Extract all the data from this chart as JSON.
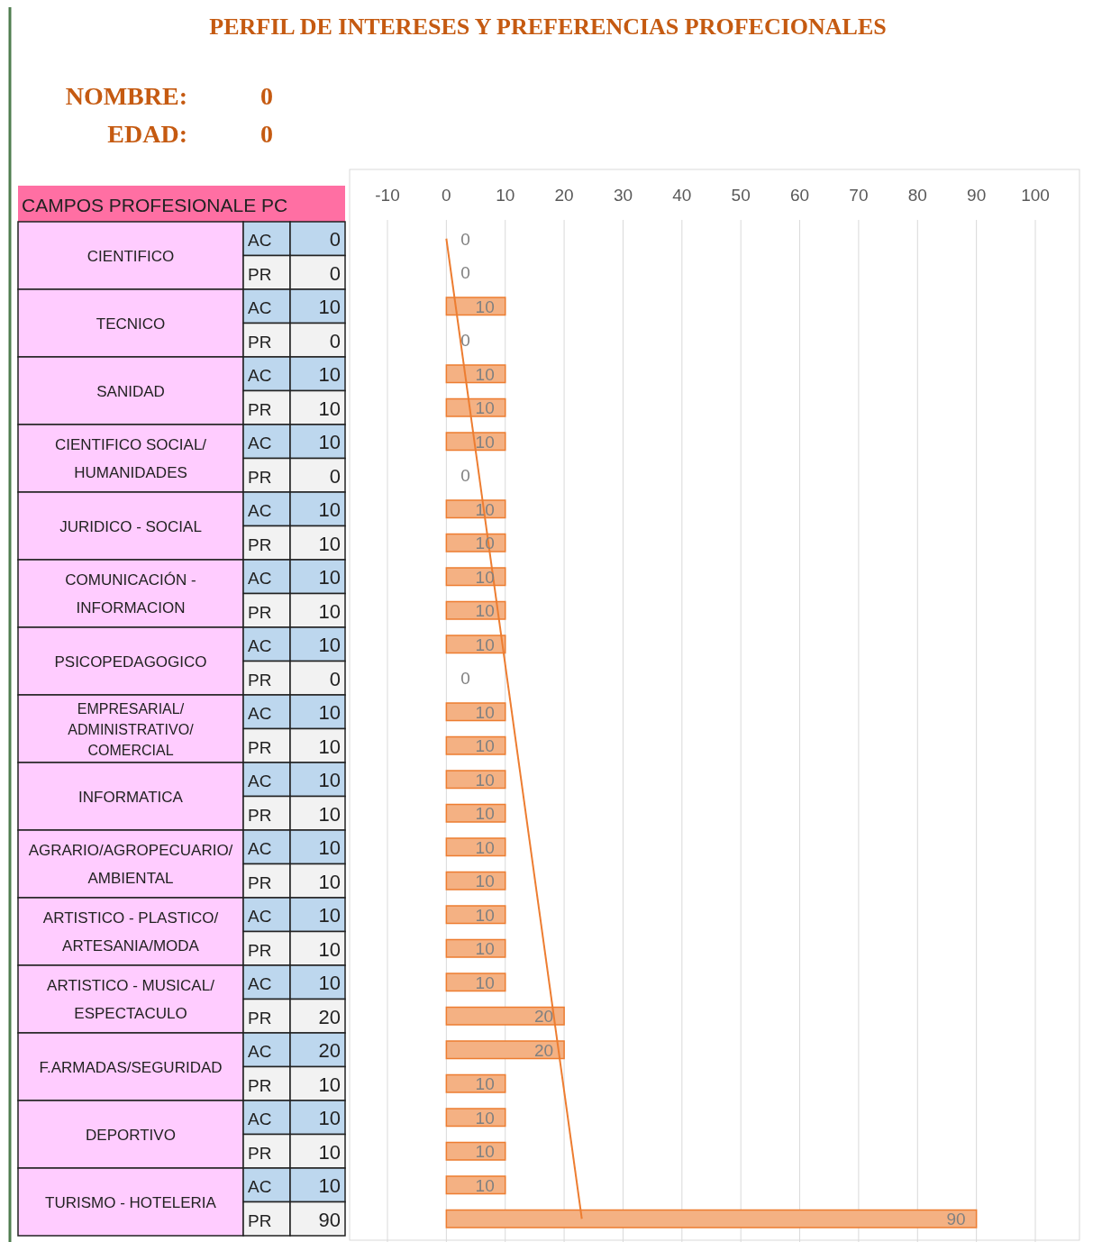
{
  "chart_data": {
    "type": "bar",
    "orientation": "horizontal",
    "title": "PERFIL DE INTERESES Y PREFERENCIAS PROFECIONALES",
    "ylabel": "CAMPOS PROFESIONALE PC",
    "annotations": [
      "NOMBRE:",
      "0",
      "EDAD:",
      "0",
      "CIENTIFICO",
      "TECNICO",
      "SANIDAD",
      "CIENTIFICO SOCIAL/HUMANIDADES",
      "JURIDICO - SOCIAL",
      "COMUNICACIÓN - INFORMACION",
      "PSICOPEDAGOGICO",
      "EMPRESARIAL/ADMINISTRATIVO/COMERCIAL",
      "INFORMATICA",
      "AGRARIO/AGROPECUARIO/AMBIENTAL",
      "ARTISTICO - PLASTICO/ARTESANIA/MODA",
      "ARTISTICO - MUSICAL/ESPECTACULO",
      "F.ARMADAS/SEGURIDAD",
      "DEPORTIVO",
      "TURISMO - HOTELERIA",
      "0",
      "0",
      "10",
      "0",
      "10",
      "10",
      "10",
      "0",
      "10",
      "10",
      "10",
      "10",
      "10",
      "0",
      "10",
      "10",
      "10",
      "10",
      "10",
      "10",
      "10",
      "10",
      "10",
      "20",
      "20",
      "10",
      "10",
      "10",
      "10",
      "90"
    ],
    "categories": [
      "AC",
      "PR",
      "AC",
      "PR",
      "AC",
      "PR",
      "AC",
      "PR",
      "AC",
      "PR",
      "AC",
      "PR",
      "AC",
      "PR",
      "AC",
      "PR",
      "AC",
      "PR",
      "AC",
      "PR",
      "AC",
      "PR",
      "AC",
      "PR",
      "AC",
      "PR",
      "AC",
      "PR",
      "AC",
      "PR"
    ],
    "series": [
      {
        "color": "#f4b183",
        "values": [
          0,
          0,
          10,
          0,
          10,
          10,
          10,
          0,
          10,
          10,
          10,
          10,
          10,
          0,
          10,
          10,
          10,
          10,
          10,
          10,
          10,
          10,
          10,
          20,
          20,
          10,
          10,
          10,
          10,
          90
        ],
        "value_labels": [
          "0",
          "0",
          "10",
          "0",
          "10",
          "10",
          "10",
          "0",
          "10",
          "10",
          "10",
          "10",
          "10",
          "0",
          "10",
          "10",
          "10",
          "10",
          "10",
          "10",
          "10",
          "10",
          "10",
          "20",
          "20",
          "10",
          "10",
          "10",
          "10",
          "90"
        ]
      },
      {
        "type": "line",
        "color": "#ed7d31",
        "values": [
          0,
          null,
          null,
          null,
          null,
          null,
          null,
          null,
          null,
          null,
          null,
          null,
          null,
          null,
          null,
          null,
          null,
          null,
          null,
          null,
          null,
          null,
          null,
          null,
          null,
          null,
          null,
          null,
          null,
          23
        ]
      }
    ],
    "xlim": [
      -10,
      100
    ],
    "xticks": [
      -10,
      0,
      10,
      20,
      30,
      40,
      50,
      60,
      70,
      80,
      90,
      100
    ],
    "grid": "x"
  }
}
